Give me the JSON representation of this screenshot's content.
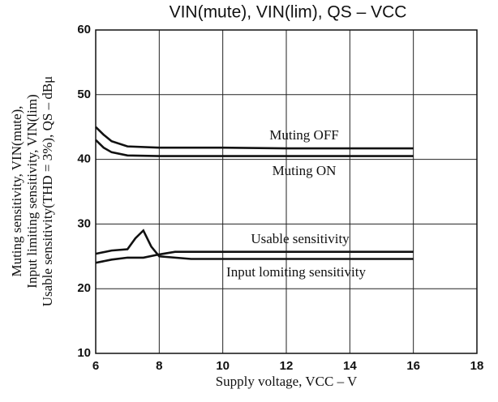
{
  "chart_data": {
    "type": "line",
    "title": "VIN(mute), VIN(lim), QS  –  VCC",
    "x_label": "Supply voltage, VCC – V",
    "y_label": [
      "Muting sensitivity, VIN(mute),",
      "Input limiting sensitivity, VIN(lim)",
      "Usable sensitivity(THD = 3%), QS – dBμ"
    ],
    "annotations": [
      "Muting OFF",
      "Muting ON",
      "Usable sensitivity",
      "Input lomiting sensitivity"
    ],
    "xlim": [
      6,
      18
    ],
    "xticks": [
      6,
      8,
      10,
      12,
      14,
      16,
      18
    ],
    "ylim": [
      10,
      60
    ],
    "yticks": [
      10,
      20,
      30,
      40,
      50,
      60
    ],
    "grid": true,
    "series": [
      {
        "name": "Muting OFF",
        "color": "#111111",
        "x": [
          6,
          6.25,
          6.5,
          7,
          8,
          10,
          12,
          14,
          16
        ],
        "values": [
          45,
          43.8,
          42.8,
          42,
          41.8,
          41.8,
          41.7,
          41.7,
          41.7
        ]
      },
      {
        "name": "Muting ON",
        "color": "#111111",
        "x": [
          6,
          6.25,
          6.5,
          7,
          8,
          10,
          12,
          14,
          16
        ],
        "values": [
          43,
          41.8,
          41.1,
          40.6,
          40.5,
          40.5,
          40.5,
          40.5,
          40.5
        ]
      },
      {
        "name": "Usable sensitivity",
        "color": "#111111",
        "x": [
          6,
          6.5,
          7,
          7.5,
          8,
          8.5,
          10,
          12,
          14,
          16
        ],
        "values": [
          24,
          24.5,
          24.8,
          24.8,
          25.3,
          25.7,
          25.7,
          25.7,
          25.7,
          25.7
        ]
      },
      {
        "name": "Input lomiting sensitivity",
        "color": "#111111",
        "x": [
          6,
          6.5,
          7,
          7.25,
          7.5,
          7.75,
          8,
          9,
          10,
          12,
          14,
          16
        ],
        "values": [
          25.4,
          25.9,
          26.1,
          27.8,
          29,
          26.5,
          25,
          24.6,
          24.6,
          24.6,
          24.6,
          24.6
        ]
      }
    ]
  }
}
